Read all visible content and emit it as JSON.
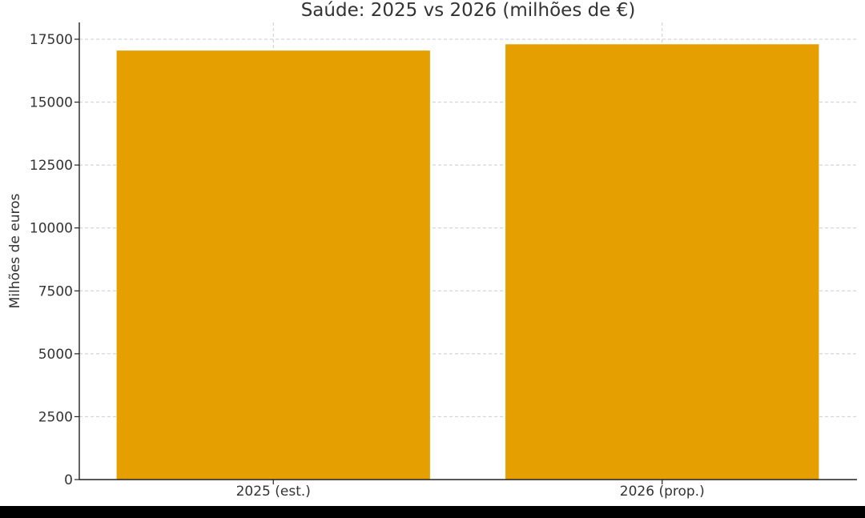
{
  "chart_data": {
    "type": "bar",
    "title": "Saúde: 2025 vs 2026 (milhões de €)",
    "xlabel": "",
    "ylabel": "Milhões de euros",
    "categories": [
      "2025 (est.)",
      "2026 (prop.)"
    ],
    "values": [
      17050,
      17300
    ],
    "ylim": [
      0,
      17500
    ],
    "yticks": [
      0,
      2500,
      5000,
      7500,
      10000,
      12500,
      15000,
      17500
    ],
    "ytick_labels": [
      "0",
      "2500",
      "5000",
      "7500",
      "10000",
      "12500",
      "15000",
      "17500"
    ],
    "grid": true,
    "bar_color": "#e5a000"
  }
}
